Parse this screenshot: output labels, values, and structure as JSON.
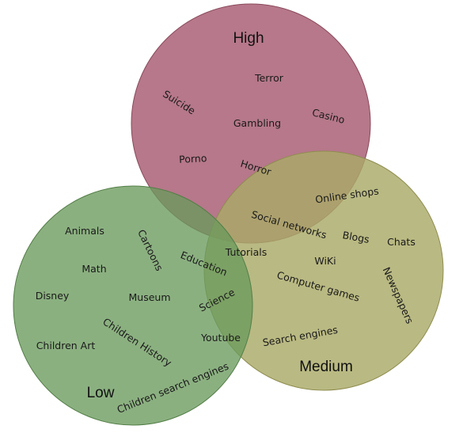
{
  "diagram": {
    "sets": [
      {
        "id": "high",
        "label": "High",
        "fill": "#a65a70",
        "stroke": "#8a4a5c"
      },
      {
        "id": "medium",
        "label": "Medium",
        "fill": "#aaa968",
        "stroke": "#8f8d50"
      },
      {
        "id": "low",
        "label": "Low",
        "fill": "#6a9a5c",
        "stroke": "#537f47"
      }
    ],
    "terms": [
      "Terror",
      "Suicide",
      "Casino",
      "Gambling",
      "Porno",
      "Horror",
      "Online shops",
      "Social networks",
      "Blogs",
      "Chats",
      "Tutorials",
      "WiKi",
      "Computer games",
      "Newspapers",
      "Search engines",
      "Animals",
      "Cartoons",
      "Education",
      "Math",
      "Disney",
      "Museum",
      "Science",
      "Children History",
      "Youtube",
      "Children Art",
      "Children search engines"
    ]
  }
}
